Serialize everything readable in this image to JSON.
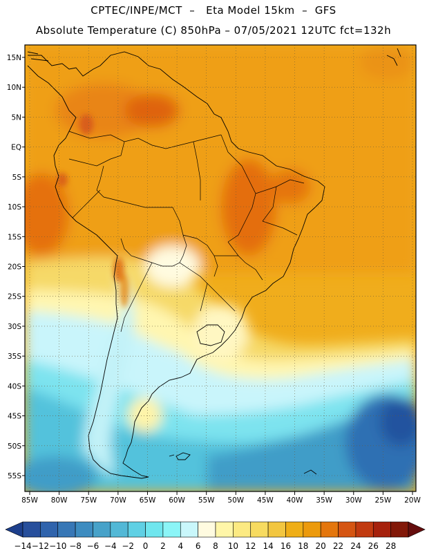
{
  "header": {
    "line1": "CPTEC/INPE/MCT  –   Eta Model 15km  –  GFS",
    "line2": "Absolute Temperature (C) 850hPa – 07/05/2021 12UTC fct=132h"
  },
  "map": {
    "lon_labels": [
      "85W",
      "80W",
      "75W",
      "70W",
      "65W",
      "60W",
      "55W",
      "50W",
      "45W",
      "40W",
      "35W",
      "30W",
      "25W",
      "20W"
    ],
    "lat_labels": [
      "15N",
      "10N",
      "5N",
      "EQ",
      "5S",
      "10S",
      "15S",
      "20S",
      "25S",
      "30S",
      "35S",
      "40S",
      "45S",
      "50S",
      "55S"
    ],
    "lon_range": [
      -85,
      -20
    ],
    "lat_range": [
      17.5,
      -57.5
    ],
    "gridlines": "dotted"
  },
  "colorbar": {
    "labels": [
      "-14",
      "-12",
      "-10",
      "-8",
      "-6",
      "-4",
      "-2",
      "0",
      "2",
      "4",
      "6",
      "8",
      "10",
      "12",
      "14",
      "16",
      "18",
      "20",
      "22",
      "24",
      "26",
      "28"
    ],
    "colors": [
      "#1d3f8c",
      "#274f9c",
      "#2f63ac",
      "#3777b6",
      "#3d8cc0",
      "#47a2c9",
      "#52b8d6",
      "#5fd0e4",
      "#6fe6ee",
      "#8bf5f7",
      "#c9f7fb",
      "#fffbe0",
      "#fff6a8",
      "#fcea82",
      "#f7db60",
      "#f2c640",
      "#efae17",
      "#ec9a0c",
      "#e4760d",
      "#d55512",
      "#c13a10",
      "#a6210c",
      "#821808",
      "#650d0d"
    ]
  }
}
